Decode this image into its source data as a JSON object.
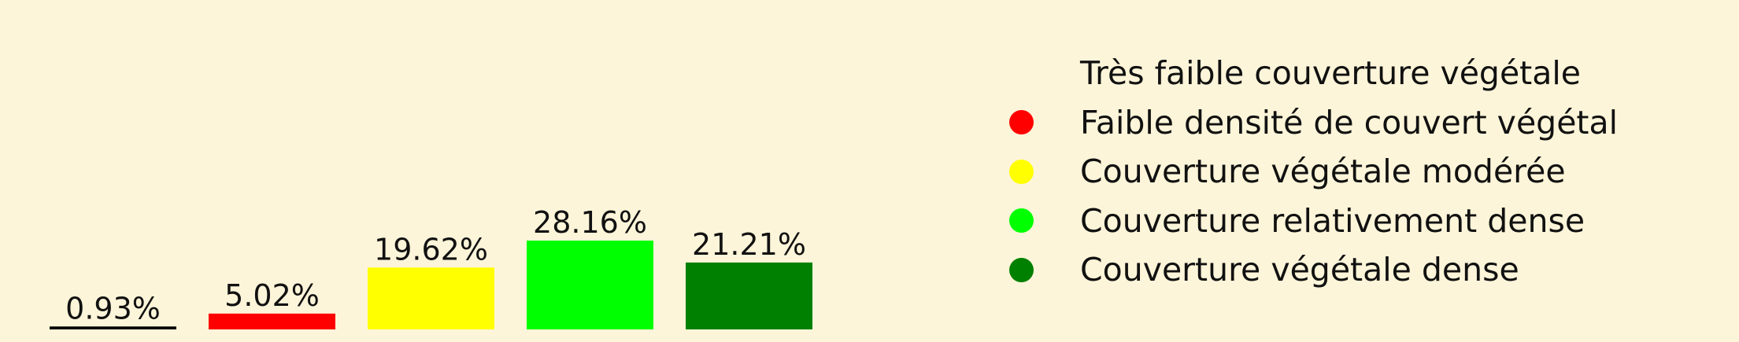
{
  "chart_data": {
    "type": "bar",
    "categories": [
      "Très faible couverture végétale",
      "Faible densité de couvert végétal",
      "Couverture végétale modérée",
      "Couverture relativement dense",
      "Couverture végétale dense"
    ],
    "values": [
      0.93,
      5.02,
      19.62,
      28.16,
      21.21
    ],
    "value_labels": [
      "0.93%",
      "5.02%",
      "19.62%",
      "28.16%",
      "21.21%"
    ],
    "colors": [
      "#000000",
      "#ff0000",
      "#ffff00",
      "#00ff00",
      "#008000"
    ],
    "legend_colors": [
      "#fdf5d9",
      "#ff0000",
      "#ffff00",
      "#00ff00",
      "#008000"
    ],
    "ylim": [
      0,
      28.16
    ],
    "title": "",
    "xlabel": "",
    "ylabel": "",
    "grid": false,
    "legend_position": "right"
  },
  "legend": {
    "items": [
      {
        "label": "Très faible couverture végétale"
      },
      {
        "label": "Faible densité de couvert végétal"
      },
      {
        "label": "Couverture végétale modérée"
      },
      {
        "label": "Couverture relativement dense"
      },
      {
        "label": "Couverture végétale dense"
      }
    ]
  },
  "colors": {
    "background": "#fdf5d9",
    "text": "#111111"
  }
}
